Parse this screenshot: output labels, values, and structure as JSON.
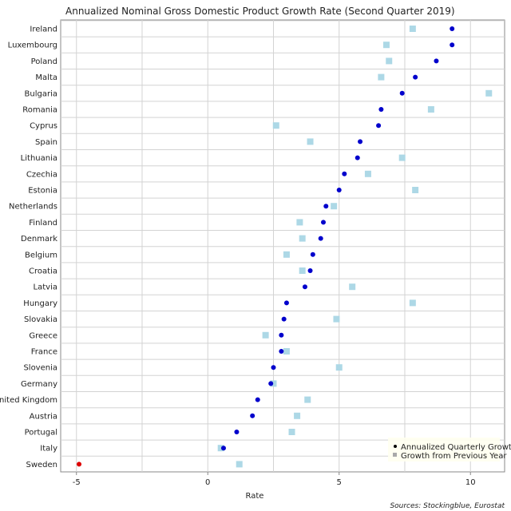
{
  "chart_data": {
    "type": "scatter",
    "title": "Annualized Nominal Gross Domestic Product Growth Rate (Second Quarter 2019)",
    "xlabel": "Rate",
    "ylabel": "",
    "xlim": [
      -5.6,
      11.3
    ],
    "xticks": [
      -5,
      0,
      5,
      10
    ],
    "grid": true,
    "legend_position": "bottom-right",
    "source": "Sources: Stockingblue, Eurostat",
    "categories": [
      "Ireland",
      "Luxembourg",
      "Poland",
      "Malta",
      "Bulgaria",
      "Romania",
      "Cyprus",
      "Spain",
      "Lithuania",
      "Czechia",
      "Estonia",
      "Netherlands",
      "Finland",
      "Denmark",
      "Belgium",
      "Croatia",
      "Latvia",
      "Hungary",
      "Slovakia",
      "Greece",
      "France",
      "Slovenia",
      "Germany",
      "United Kingdom",
      "Austria",
      "Portugal",
      "Italy",
      "Sweden"
    ],
    "series": [
      {
        "name": "Annualized Quarterly Growth",
        "marker": "circle",
        "color": "#0000cc",
        "negative_color": "#dd0000",
        "values": [
          9.3,
          9.3,
          8.7,
          7.9,
          7.4,
          6.6,
          6.5,
          5.8,
          5.7,
          5.2,
          5.0,
          4.5,
          4.4,
          4.3,
          4.0,
          3.9,
          3.7,
          3.0,
          2.9,
          2.8,
          2.8,
          2.5,
          2.4,
          1.9,
          1.7,
          1.1,
          0.6,
          -4.9
        ]
      },
      {
        "name": "Growth from Previous Year",
        "marker": "square",
        "color": "#add8e6",
        "values": [
          7.8,
          6.8,
          6.9,
          6.6,
          10.7,
          8.5,
          2.6,
          3.9,
          7.4,
          6.1,
          7.9,
          4.8,
          3.5,
          3.6,
          3.0,
          3.6,
          5.5,
          7.8,
          4.9,
          2.2,
          3.0,
          5.0,
          2.5,
          3.8,
          3.4,
          3.2,
          0.5,
          1.2
        ]
      }
    ]
  }
}
